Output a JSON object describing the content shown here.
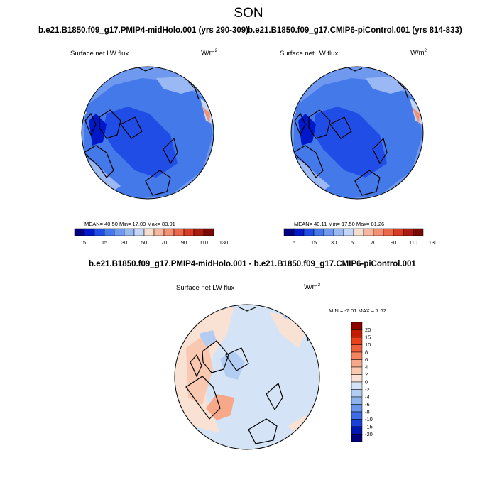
{
  "season": "SON",
  "colors": {
    "ocean_fill": "#5b8ef0",
    "land_outline": "#000000"
  },
  "chart_data": [
    {
      "type": "heatmap",
      "projection": "north-polar-stereographic",
      "case_title": "b.e21.B1850.f09_g17.PMIP4-midHolo.001 (yrs 290-309)",
      "variable": "Surface net LW flux",
      "units": "W/m",
      "units_exp": "2",
      "stats": {
        "mean": "40.50",
        "min": "17.09",
        "max": "83.91"
      },
      "stats_text": "MEAN=  40.50   Min=  17.09   Max=  83.91",
      "colorbar": {
        "orientation": "horizontal",
        "levels": [
          "5",
          "15",
          "30",
          "50",
          "70",
          "90",
          "110",
          "130"
        ],
        "colors": [
          "#000080",
          "#0018c8",
          "#1f4de6",
          "#4479ea",
          "#6f98ef",
          "#9ab8f3",
          "#c4d6f8",
          "#f5ddd0",
          "#f6b79e",
          "#f49173",
          "#ec6849",
          "#d63c24",
          "#aa1c10",
          "#7a0a00"
        ]
      }
    },
    {
      "type": "heatmap",
      "projection": "north-polar-stereographic",
      "case_title": "b.e21.B1850.f09_g17.CMIP6-piControl.001 (yrs 814-833)",
      "variable": "Surface net LW flux",
      "units": "W/m",
      "units_exp": "2",
      "stats": {
        "mean": "40.11",
        "min": "17.50",
        "max": "81.26"
      },
      "stats_text": "MEAN=  40.11   Min=  17.50   Max=  81.26",
      "colorbar": {
        "orientation": "horizontal",
        "levels": [
          "5",
          "15",
          "30",
          "50",
          "70",
          "90",
          "110",
          "130"
        ],
        "colors": [
          "#000080",
          "#0018c8",
          "#1f4de6",
          "#4479ea",
          "#6f98ef",
          "#9ab8f3",
          "#c4d6f8",
          "#f5ddd0",
          "#f6b79e",
          "#f49173",
          "#ec6849",
          "#d63c24",
          "#aa1c10",
          "#7a0a00"
        ]
      }
    },
    {
      "type": "heatmap",
      "projection": "north-polar-stereographic",
      "case_title": "b.e21.B1850.f09_g17.PMIP4-midHolo.001 - b.e21.B1850.f09_g17.CMIP6-piControl.001",
      "variable": "Surface net LW flux",
      "units": "W/m",
      "units_exp": "2",
      "stats": {
        "min": "-7.01",
        "max": "7.62"
      },
      "stats_text": "MIN =  -7.01 MAX =   7.62",
      "colorbar": {
        "orientation": "vertical",
        "levels": [
          "20",
          "15",
          "10",
          "8",
          "6",
          "4",
          "2",
          "0",
          "-2",
          "-4",
          "-6",
          "-8",
          "-10",
          "-15",
          "-20"
        ],
        "colors": [
          "#8c0000",
          "#c41c00",
          "#e8401a",
          "#f0603c",
          "#f58560",
          "#f6a888",
          "#f8c8b0",
          "#f9e2d4",
          "#d4e4f6",
          "#b3cdf2",
          "#8fb3ee",
          "#6b95ec",
          "#3f6ce8",
          "#1b40d8",
          "#0016b0",
          "#00007a"
        ]
      }
    }
  ]
}
